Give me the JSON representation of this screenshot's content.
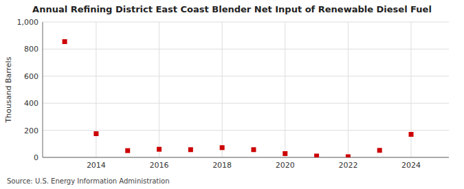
{
  "chart_data": {
    "type": "scatter",
    "title": "Annual Refining District East Coast Blender Net Input of Renewable Diesel Fuel",
    "ylabel": "Thousand Barrels",
    "source": "Source: U.S. Energy Information Administration",
    "x": [
      2013,
      2014,
      2015,
      2016,
      2017,
      2018,
      2019,
      2020,
      2021,
      2022,
      2023,
      2024
    ],
    "values": [
      855,
      175,
      50,
      60,
      57,
      72,
      57,
      28,
      10,
      5,
      52,
      170
    ],
    "color": "#cc0000",
    "marker": "square",
    "xlim": [
      2012.3,
      2025.2
    ],
    "xticks": [
      2014,
      2016,
      2018,
      2020,
      2022,
      2024
    ],
    "ylim": [
      0,
      1000
    ],
    "yticks": [
      0,
      200,
      400,
      600,
      800,
      {
        "value": 1000,
        "label": "1,000"
      }
    ],
    "grid": true
  }
}
